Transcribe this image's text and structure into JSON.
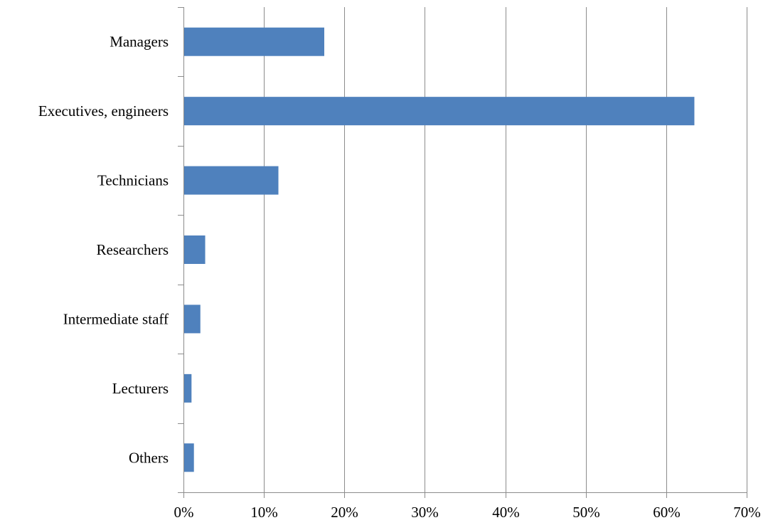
{
  "chart_data": {
    "type": "bar",
    "orientation": "horizontal",
    "categories": [
      "Managers",
      "Executives, engineers",
      "Technicians",
      "Researchers",
      "Intermediate staff",
      "Lecturers",
      "Others"
    ],
    "values": [
      0.175,
      0.635,
      0.118,
      0.027,
      0.021,
      0.01,
      0.013
    ],
    "value_format": "percent",
    "xlim": [
      0,
      0.7
    ],
    "x_ticks": [
      0,
      0.1,
      0.2,
      0.3,
      0.4,
      0.5,
      0.6,
      0.7
    ],
    "x_tick_labels": [
      "0%",
      "10%",
      "20%",
      "30%",
      "40%",
      "50%",
      "60%",
      "70%"
    ],
    "title": "",
    "xlabel": "",
    "ylabel": "",
    "grid": "vertical",
    "legend": "none",
    "bar_color": "#4f81bd"
  }
}
